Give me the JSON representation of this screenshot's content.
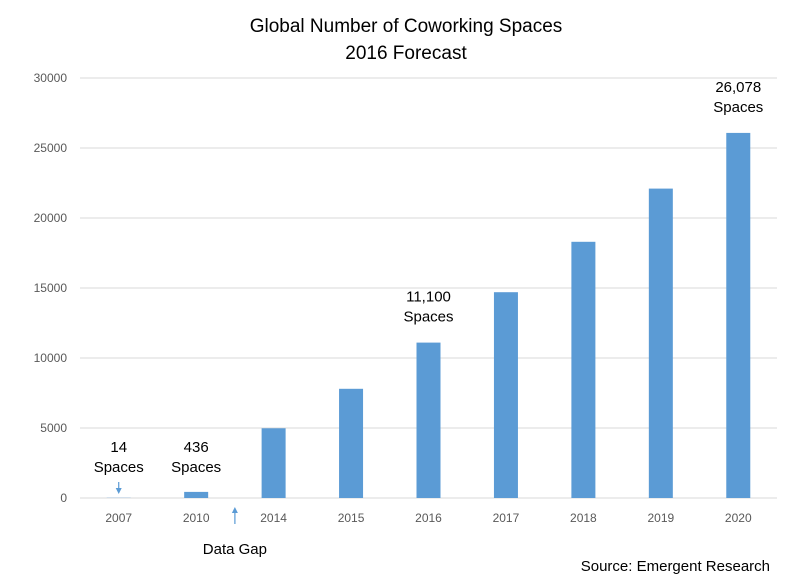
{
  "chart_data": {
    "type": "bar",
    "title": [
      "Global Number of Coworking Spaces",
      "2016 Forecast"
    ],
    "xlabel": "",
    "ylabel": "",
    "categories": [
      "2007",
      "2010",
      "2014",
      "2015",
      "2016",
      "2017",
      "2018",
      "2019",
      "2020"
    ],
    "values": [
      14,
      436,
      4980,
      7800,
      11100,
      14700,
      18300,
      22100,
      26078
    ],
    "ylim": [
      0,
      30000
    ],
    "yticks": [
      "0",
      "5000",
      "10000",
      "15000",
      "20000",
      "25000",
      "30000"
    ],
    "bar_color": "#5b9bd5",
    "grid": true,
    "legend": "none",
    "annotations": [
      {
        "category": "2007",
        "lines": [
          "14",
          "Spaces"
        ],
        "arrow": "down"
      },
      {
        "category": "2010",
        "lines": [
          "436",
          "Spaces"
        ]
      },
      {
        "category": "2016",
        "lines": [
          "11,100",
          "Spaces"
        ]
      },
      {
        "category": "2020",
        "lines": [
          "26,078",
          "Spaces"
        ]
      }
    ],
    "data_gap": {
      "label": "Data Gap",
      "between": [
        "2010",
        "2014"
      ]
    },
    "source": "Source: Emergent Research"
  }
}
